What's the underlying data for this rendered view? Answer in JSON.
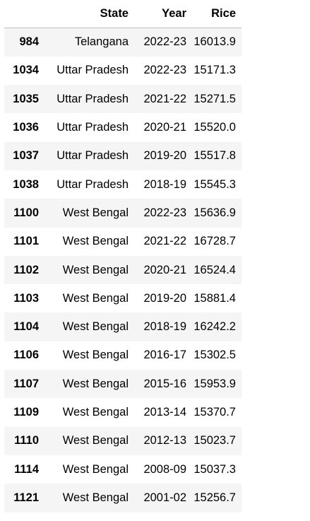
{
  "table": {
    "columns": [
      "",
      "State",
      "Year",
      "Rice"
    ],
    "rows": [
      {
        "index": "984",
        "state": "Telangana",
        "year": "2022-23",
        "rice": "16013.9"
      },
      {
        "index": "1034",
        "state": "Uttar Pradesh",
        "year": "2022-23",
        "rice": "15171.3"
      },
      {
        "index": "1035",
        "state": "Uttar Pradesh",
        "year": "2021-22",
        "rice": "15271.5"
      },
      {
        "index": "1036",
        "state": "Uttar Pradesh",
        "year": "2020-21",
        "rice": "15520.0"
      },
      {
        "index": "1037",
        "state": "Uttar Pradesh",
        "year": "2019-20",
        "rice": "15517.8"
      },
      {
        "index": "1038",
        "state": "Uttar Pradesh",
        "year": "2018-19",
        "rice": "15545.3"
      },
      {
        "index": "1100",
        "state": "West Bengal",
        "year": "2022-23",
        "rice": "15636.9"
      },
      {
        "index": "1101",
        "state": "West Bengal",
        "year": "2021-22",
        "rice": "16728.7"
      },
      {
        "index": "1102",
        "state": "West Bengal",
        "year": "2020-21",
        "rice": "16524.4"
      },
      {
        "index": "1103",
        "state": "West Bengal",
        "year": "2019-20",
        "rice": "15881.4"
      },
      {
        "index": "1104",
        "state": "West Bengal",
        "year": "2018-19",
        "rice": "16242.2"
      },
      {
        "index": "1106",
        "state": "West Bengal",
        "year": "2016-17",
        "rice": "15302.5"
      },
      {
        "index": "1107",
        "state": "West Bengal",
        "year": "2015-16",
        "rice": "15953.9"
      },
      {
        "index": "1109",
        "state": "West Bengal",
        "year": "2013-14",
        "rice": "15370.7"
      },
      {
        "index": "1110",
        "state": "West Bengal",
        "year": "2012-13",
        "rice": "15023.7"
      },
      {
        "index": "1114",
        "state": "West Bengal",
        "year": "2008-09",
        "rice": "15037.3"
      },
      {
        "index": "1121",
        "state": "West Bengal",
        "year": "2001-02",
        "rice": "15256.7"
      }
    ]
  }
}
